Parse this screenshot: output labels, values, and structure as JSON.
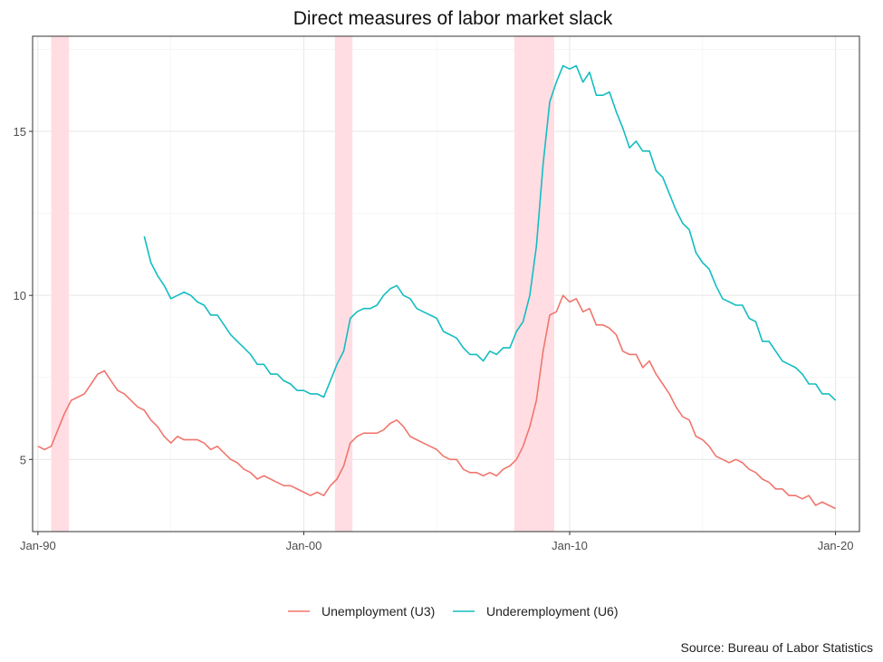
{
  "chart_data": {
    "type": "line",
    "title": "Direct measures of labor market slack",
    "source": "Source: Bureau of Labor Statistics",
    "xlabel": "",
    "ylabel": "",
    "xlim": [
      1989.8,
      2020.9
    ],
    "ylim": [
      2.8,
      17.9
    ],
    "x_ticks": [
      {
        "value": 1990,
        "label": "Jan-90"
      },
      {
        "value": 2000,
        "label": "Jan-00"
      },
      {
        "value": 2010,
        "label": "Jan-10"
      },
      {
        "value": 2020,
        "label": "Jan-20"
      }
    ],
    "y_ticks": [
      {
        "value": 5,
        "label": "5"
      },
      {
        "value": 10,
        "label": "10"
      },
      {
        "value": 15,
        "label": "15"
      }
    ],
    "grid": true,
    "legend_position": "bottom",
    "recessions": [
      {
        "start": 1990.5,
        "end": 1991.17
      },
      {
        "start": 2001.17,
        "end": 2001.83
      },
      {
        "start": 2007.92,
        "end": 2009.42
      }
    ],
    "recession_color": "#ffdde3",
    "series": [
      {
        "name": "Unemployment (U3)",
        "color": "#f0766d",
        "x": [
          1990.0,
          1990.25,
          1990.5,
          1990.75,
          1991.0,
          1991.25,
          1991.5,
          1991.75,
          1992.0,
          1992.25,
          1992.5,
          1992.75,
          1993.0,
          1993.25,
          1993.5,
          1993.75,
          1994.0,
          1994.25,
          1994.5,
          1994.75,
          1995.0,
          1995.25,
          1995.5,
          1995.75,
          1996.0,
          1996.25,
          1996.5,
          1996.75,
          1997.0,
          1997.25,
          1997.5,
          1997.75,
          1998.0,
          1998.25,
          1998.5,
          1998.75,
          1999.0,
          1999.25,
          1999.5,
          1999.75,
          2000.0,
          2000.25,
          2000.5,
          2000.75,
          2001.0,
          2001.25,
          2001.5,
          2001.75,
          2002.0,
          2002.25,
          2002.5,
          2002.75,
          2003.0,
          2003.25,
          2003.5,
          2003.75,
          2004.0,
          2004.25,
          2004.5,
          2004.75,
          2005.0,
          2005.25,
          2005.5,
          2005.75,
          2006.0,
          2006.25,
          2006.5,
          2006.75,
          2007.0,
          2007.25,
          2007.5,
          2007.75,
          2008.0,
          2008.25,
          2008.5,
          2008.75,
          2009.0,
          2009.25,
          2009.5,
          2009.75,
          2010.0,
          2010.25,
          2010.5,
          2010.75,
          2011.0,
          2011.25,
          2011.5,
          2011.75,
          2012.0,
          2012.25,
          2012.5,
          2012.75,
          2013.0,
          2013.25,
          2013.5,
          2013.75,
          2014.0,
          2014.25,
          2014.5,
          2014.75,
          2015.0,
          2015.25,
          2015.5,
          2015.75,
          2016.0,
          2016.25,
          2016.5,
          2016.75,
          2017.0,
          2017.25,
          2017.5,
          2017.75,
          2018.0,
          2018.25,
          2018.5,
          2018.75,
          2019.0,
          2019.25,
          2019.5,
          2019.75,
          2020.0
        ],
        "values": [
          5.4,
          5.3,
          5.4,
          5.9,
          6.4,
          6.8,
          6.9,
          7.0,
          7.3,
          7.6,
          7.7,
          7.4,
          7.1,
          7.0,
          6.8,
          6.6,
          6.5,
          6.2,
          6.0,
          5.7,
          5.5,
          5.7,
          5.6,
          5.6,
          5.6,
          5.5,
          5.3,
          5.4,
          5.2,
          5.0,
          4.9,
          4.7,
          4.6,
          4.4,
          4.5,
          4.4,
          4.3,
          4.2,
          4.2,
          4.1,
          4.0,
          3.9,
          4.0,
          3.9,
          4.2,
          4.4,
          4.8,
          5.5,
          5.7,
          5.8,
          5.8,
          5.8,
          5.9,
          6.1,
          6.2,
          6.0,
          5.7,
          5.6,
          5.5,
          5.4,
          5.3,
          5.1,
          5.0,
          5.0,
          4.7,
          4.6,
          4.6,
          4.5,
          4.6,
          4.5,
          4.7,
          4.8,
          5.0,
          5.4,
          6.0,
          6.8,
          8.3,
          9.4,
          9.5,
          10.0,
          9.8,
          9.9,
          9.5,
          9.6,
          9.1,
          9.1,
          9.0,
          8.8,
          8.3,
          8.2,
          8.2,
          7.8,
          8.0,
          7.6,
          7.3,
          7.0,
          6.6,
          6.3,
          6.2,
          5.7,
          5.6,
          5.4,
          5.1,
          5.0,
          4.9,
          5.0,
          4.9,
          4.7,
          4.6,
          4.4,
          4.3,
          4.1,
          4.1,
          3.9,
          3.9,
          3.8,
          3.9,
          3.6,
          3.7,
          3.6,
          3.5
        ]
      },
      {
        "name": "Underemployment (U6)",
        "color": "#14bdc1",
        "x": [
          1994.0,
          1994.25,
          1994.5,
          1994.75,
          1995.0,
          1995.25,
          1995.5,
          1995.75,
          1996.0,
          1996.25,
          1996.5,
          1996.75,
          1997.0,
          1997.25,
          1997.5,
          1997.75,
          1998.0,
          1998.25,
          1998.5,
          1998.75,
          1999.0,
          1999.25,
          1999.5,
          1999.75,
          2000.0,
          2000.25,
          2000.5,
          2000.75,
          2001.0,
          2001.25,
          2001.5,
          2001.75,
          2002.0,
          2002.25,
          2002.5,
          2002.75,
          2003.0,
          2003.25,
          2003.5,
          2003.75,
          2004.0,
          2004.25,
          2004.5,
          2004.75,
          2005.0,
          2005.25,
          2005.5,
          2005.75,
          2006.0,
          2006.25,
          2006.5,
          2006.75,
          2007.0,
          2007.25,
          2007.5,
          2007.75,
          2008.0,
          2008.25,
          2008.5,
          2008.75,
          2009.0,
          2009.25,
          2009.5,
          2009.75,
          2010.0,
          2010.25,
          2010.5,
          2010.75,
          2011.0,
          2011.25,
          2011.5,
          2011.75,
          2012.0,
          2012.25,
          2012.5,
          2012.75,
          2013.0,
          2013.25,
          2013.5,
          2013.75,
          2014.0,
          2014.25,
          2014.5,
          2014.75,
          2015.0,
          2015.25,
          2015.5,
          2015.75,
          2016.0,
          2016.25,
          2016.5,
          2016.75,
          2017.0,
          2017.25,
          2017.5,
          2017.75,
          2018.0,
          2018.25,
          2018.5,
          2018.75,
          2019.0,
          2019.25,
          2019.5,
          2019.75,
          2020.0
        ],
        "values": [
          11.8,
          11.0,
          10.6,
          10.3,
          9.9,
          10.0,
          10.1,
          10.0,
          9.8,
          9.7,
          9.4,
          9.4,
          9.1,
          8.8,
          8.6,
          8.4,
          8.2,
          7.9,
          7.9,
          7.6,
          7.6,
          7.4,
          7.3,
          7.1,
          7.1,
          7.0,
          7.0,
          6.9,
          7.4,
          7.9,
          8.3,
          9.3,
          9.5,
          9.6,
          9.6,
          9.7,
          10.0,
          10.2,
          10.3,
          10.0,
          9.9,
          9.6,
          9.5,
          9.4,
          9.3,
          8.9,
          8.8,
          8.7,
          8.4,
          8.2,
          8.2,
          8.0,
          8.3,
          8.2,
          8.4,
          8.4,
          8.9,
          9.2,
          10.0,
          11.5,
          14.0,
          15.9,
          16.5,
          17.0,
          16.9,
          17.0,
          16.5,
          16.8,
          16.1,
          16.1,
          16.2,
          15.6,
          15.1,
          14.5,
          14.7,
          14.4,
          14.4,
          13.8,
          13.6,
          13.1,
          12.6,
          12.2,
          12.0,
          11.3,
          11.0,
          10.8,
          10.3,
          9.9,
          9.8,
          9.7,
          9.7,
          9.3,
          9.2,
          8.6,
          8.6,
          8.3,
          8.0,
          7.9,
          7.8,
          7.6,
          7.3,
          7.3,
          7.0,
          7.0,
          6.8
        ]
      }
    ]
  }
}
